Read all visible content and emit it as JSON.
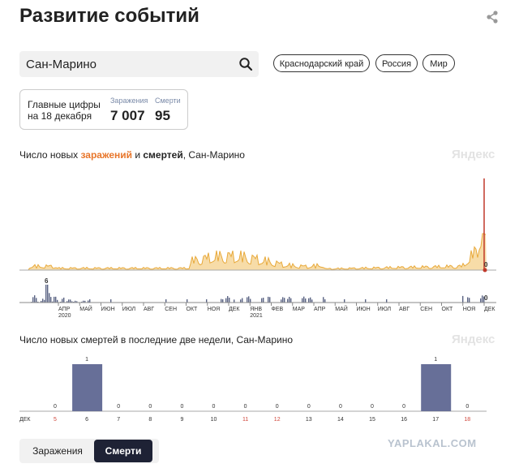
{
  "page": {
    "title": "Развитие событий",
    "share_icon": "share-icon",
    "search_value": "Сан-Марино",
    "search_icon": "search-icon",
    "region_pills": [
      "Краснодарский край",
      "Россия",
      "Мир"
    ]
  },
  "summary": {
    "label_line1": "Главные цифры",
    "label_line2": "на 18 декабря",
    "infections_caption": "Заражения",
    "infections_value": "7 007",
    "deaths_caption": "Смерти",
    "deaths_value": "95"
  },
  "chart1": {
    "title_prefix": "Число новых ",
    "title_infections": "заражений",
    "title_and": " и ",
    "title_deaths": "смертей",
    "title_suffix": ", Сан-Марино",
    "watermark": "Яндекс",
    "infections_end_label": "0",
    "deaths_peak_label": "6",
    "deaths_end_label": "0",
    "colors": {
      "infections": "#e8a93a",
      "infections_fill": "#f7dca8",
      "deaths": "#5a6383",
      "peak": "#c0392b"
    },
    "months": [
      "АПР",
      "МАЙ",
      "ИЮН",
      "ИЮЛ",
      "АВГ",
      "СЕН",
      "ОКТ",
      "НОЯ",
      "ДЕК",
      "ЯНВ",
      "ФЕВ",
      "МАР",
      "АПР",
      "МАЙ",
      "ИЮН",
      "ИЮЛ",
      "АВГ",
      "СЕН",
      "ОКТ",
      "НОЯ",
      "ДЕК"
    ],
    "years": [
      "2020",
      "2021"
    ]
  },
  "chart_data": {
    "type": "bar",
    "title": "Число новых смертей в последние две недели, Сан-Марино",
    "watermark": "Яндекс",
    "month_label": "ДЕК",
    "categories": [
      "5",
      "6",
      "7",
      "8",
      "9",
      "10",
      "11",
      "12",
      "13",
      "14",
      "15",
      "16",
      "17",
      "18"
    ],
    "values": [
      0,
      1,
      0,
      0,
      0,
      0,
      0,
      0,
      0,
      0,
      0,
      0,
      1,
      0
    ],
    "weekend": [
      true,
      false,
      false,
      false,
      false,
      false,
      true,
      true,
      false,
      false,
      false,
      false,
      false,
      true
    ],
    "colors": {
      "bar": "#676f98",
      "weekend_label": "#d0463a",
      "label": "#333333"
    }
  },
  "tabs": {
    "infections": "Заражения",
    "deaths": "Смерти"
  },
  "watermark_site": "YAPLAKAL.COM"
}
